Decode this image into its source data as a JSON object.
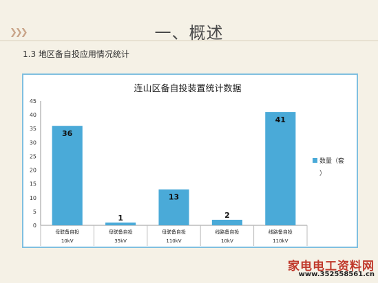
{
  "slide": {
    "title": "一、概述",
    "section_heading": "1.3  地区备自投应用情况统计"
  },
  "watermark": {
    "line1": "家电电工资料网",
    "line2": "www.352558561.cn"
  },
  "colors": {
    "bar": "#4aaad8",
    "panel_border": "#7fbfe0",
    "background": "#f5f1e6"
  },
  "chart_data": {
    "type": "bar",
    "title": "连山区备自投装置统计数据",
    "categories": [
      [
        "母联备自投",
        "10kV"
      ],
      [
        "母联备自投",
        "35kV"
      ],
      [
        "母联备自投",
        "110kV"
      ],
      [
        "线路备自投",
        "10kV"
      ],
      [
        "线路备自投",
        "110kV"
      ]
    ],
    "series": [
      {
        "name": "数量（套）",
        "values": [
          36,
          1,
          13,
          2,
          41
        ]
      }
    ],
    "ylim": [
      0,
      45
    ],
    "yticks": [
      0,
      5,
      10,
      15,
      20,
      25,
      30,
      35,
      40,
      45
    ],
    "data_labels": true,
    "legend": "right",
    "grid": false
  }
}
